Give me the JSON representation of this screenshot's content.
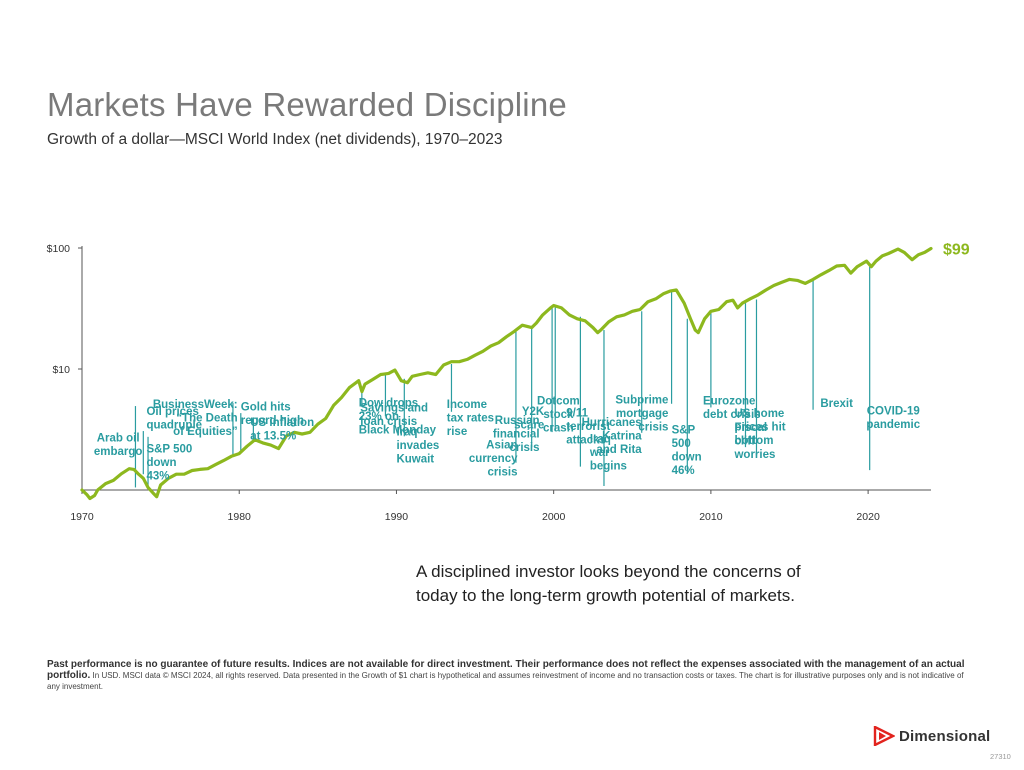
{
  "title": "Markets Have Rewarded Discipline",
  "subtitle": "Growth of a dollar—MSCI World Index (net dividends), 1970–2023",
  "chart_data": {
    "type": "line",
    "yscale": "log",
    "xlim": [
      1970,
      2024
    ],
    "ylim": [
      0.8,
      100
    ],
    "xticks": [
      "1970",
      "1980",
      "1990",
      "2000",
      "2010",
      "2020"
    ],
    "yticks": [
      "$100",
      "$10"
    ],
    "line_color": "#8db81e",
    "end_label": "$99",
    "series": [
      {
        "x": [
          1970.0,
          1970.3,
          1970.5,
          1970.8,
          1971.0,
          1971.5,
          1972.0,
          1972.5,
          1973.0,
          1973.3,
          1973.6,
          1973.9,
          1974.2,
          1974.5,
          1974.75,
          1975.0,
          1975.5,
          1976.0,
          1976.5,
          1977.0,
          1977.5,
          1978.0,
          1978.5,
          1979.0,
          1979.5,
          1980.0,
          1980.5,
          1981.0,
          1981.5,
          1982.0,
          1982.5,
          1983.0,
          1983.5,
          1984.0,
          1984.5,
          1985.0,
          1985.5,
          1986.0,
          1986.5,
          1987.0,
          1987.6,
          1987.8,
          1988.0,
          1988.5,
          1989.0,
          1989.5,
          1989.9,
          1990.3,
          1990.7,
          1991.0,
          1991.5,
          1992.0,
          1992.5,
          1993.0,
          1993.5,
          1994.0,
          1994.5,
          1995.0,
          1995.5,
          1996.0,
          1996.5,
          1997.0,
          1997.5,
          1998.0,
          1998.6,
          1998.9,
          1999.3,
          1999.8,
          2000.0,
          2000.5,
          2001.0,
          2001.5,
          2002.0,
          2002.5,
          2002.8,
          2003.0,
          2003.5,
          2004.0,
          2004.5,
          2005.0,
          2005.5,
          2006.0,
          2006.5,
          2007.0,
          2007.4,
          2007.8,
          2008.3,
          2008.7,
          2009.0,
          2009.2,
          2009.6,
          2010.0,
          2010.5,
          2011.0,
          2011.4,
          2011.7,
          2012.0,
          2012.5,
          2013.0,
          2013.5,
          2014.0,
          2014.5,
          2015.0,
          2015.5,
          2016.0,
          2016.5,
          2017.0,
          2017.5,
          2018.0,
          2018.5,
          2018.9,
          2019.3,
          2019.9,
          2020.2,
          2020.5,
          2020.9,
          2021.3,
          2021.9,
          2022.3,
          2022.8,
          2023.2,
          2023.6,
          2024.0
        ],
        "y": [
          1.0,
          0.92,
          0.85,
          0.9,
          1.0,
          1.13,
          1.2,
          1.36,
          1.5,
          1.48,
          1.35,
          1.25,
          1.05,
          0.95,
          0.88,
          1.1,
          1.25,
          1.35,
          1.35,
          1.45,
          1.48,
          1.5,
          1.62,
          1.75,
          1.9,
          2.0,
          2.3,
          2.6,
          2.45,
          2.35,
          2.2,
          2.8,
          3.0,
          2.9,
          3.0,
          3.5,
          3.9,
          5.0,
          5.8,
          7.0,
          8.0,
          6.5,
          7.5,
          8.2,
          9.0,
          9.2,
          9.8,
          8.0,
          7.7,
          8.7,
          9.0,
          9.3,
          9.0,
          10.8,
          11.5,
          11.5,
          12.0,
          13.0,
          14.0,
          15.5,
          16.5,
          18.5,
          20.5,
          23.0,
          22.0,
          24.0,
          28.0,
          32.0,
          33.5,
          32.0,
          28.0,
          26.0,
          25.0,
          22.0,
          20.0,
          21.0,
          24.5,
          27.0,
          28.0,
          30.0,
          31.0,
          36.0,
          38.0,
          42.0,
          44.0,
          45.0,
          35.0,
          26.0,
          21.0,
          20.0,
          26.0,
          30.0,
          31.0,
          36.0,
          37.0,
          32.0,
          35.0,
          38.0,
          41.0,
          45.0,
          49.0,
          52.0,
          55.0,
          54.0,
          51.0,
          55.0,
          60.0,
          65.0,
          71.0,
          72.0,
          62.0,
          70.0,
          78.0,
          70.0,
          78.0,
          86.0,
          90.0,
          98.0,
          92.0,
          80.0,
          88.0,
          92.0,
          99.0
        ]
      }
    ],
    "annotations": [
      {
        "text": [
          "Arab oil",
          "embargo"
        ],
        "x": 1973.9,
        "line_top": 3.07,
        "line_bottom": 1.35,
        "label_x": 1972.3,
        "label_y": 2.51,
        "align": "middle"
      },
      {
        "text": [
          "Oil prices",
          "quadruple"
        ],
        "x": 1973.4,
        "line_top": 4.94,
        "line_bottom": 1.05,
        "label_x": 1974.1,
        "label_y": 4.18,
        "align": "start"
      },
      {
        "text": [
          "S&P 500",
          "down",
          "43%"
        ],
        "x": 1974.2,
        "line_top": 2.75,
        "line_bottom": 1.05,
        "label_x": 1974.1,
        "label_y": 2.05,
        "align": "start"
      },
      {
        "text": [
          "BusinessWeek:",
          "“The Death",
          "of Equities”"
        ],
        "x": 1979.6,
        "line_top": 5.26,
        "line_bottom": 1.9,
        "label_x": 1979.9,
        "label_y": 4.77,
        "align": "end"
      },
      {
        "text": [
          "Gold hits",
          "record high"
        ],
        "x": 1980.1,
        "line_top": 4.32,
        "line_bottom": 2.1,
        "label_x": 1980.1,
        "label_y": 4.52,
        "align": "start"
      },
      {
        "text": [
          "US inflation",
          "at 13.5%"
        ],
        "x": 1980.9,
        "line_top": 3.98,
        "line_bottom": 2.55,
        "label_x": 1980.7,
        "label_y": 3.38,
        "align": "start"
      },
      {
        "text": [
          "Dow drops",
          "23% on",
          "Black Monday"
        ],
        "x": 1987.8,
        "line_top": 4.95,
        "line_bottom": 6.9,
        "label_x": 1987.6,
        "label_y": 4.9,
        "align": "start"
      },
      {
        "text": [
          "Savings and",
          "loan crisis"
        ],
        "x": 1989.3,
        "line_top": 4.07,
        "line_bottom": 9.0,
        "label_x": 1987.7,
        "label_y": 4.45,
        "align": "start"
      },
      {
        "text": [
          "Iraq",
          "invades",
          "Kuwait"
        ],
        "x": 1990.5,
        "line_top": 2.78,
        "line_bottom": 8.3,
        "label_x": 1990.0,
        "label_y": 2.81,
        "align": "start"
      },
      {
        "text": [
          "Income",
          "tax rates",
          "rise"
        ],
        "x": 1993.5,
        "line_top": 4.43,
        "line_bottom": 11.0,
        "label_x": 1993.2,
        "label_y": 4.76,
        "align": "start"
      },
      {
        "text": [
          "Asian",
          "currency",
          "crisis"
        ],
        "x": 1997.6,
        "line_top": 1.68,
        "line_bottom": 21.5,
        "label_x": 1997.7,
        "label_y": 2.2,
        "align": "end"
      },
      {
        "text": [
          "Russian",
          "financial",
          "crisis"
        ],
        "x": 1998.6,
        "line_top": 2.25,
        "line_bottom": 22.0,
        "label_x": 1999.1,
        "label_y": 3.5,
        "align": "end"
      },
      {
        "text": [
          "Y2K",
          "scare"
        ],
        "x": 1999.9,
        "line_top": 3.01,
        "line_bottom": 32.5,
        "label_x": 1999.4,
        "label_y": 4.17,
        "align": "end"
      },
      {
        "text": [
          "Dotcom",
          "stock",
          "crash"
        ],
        "x": 2000.1,
        "line_top": 3.07,
        "line_bottom": 33.5,
        "label_x": 2000.3,
        "label_y": 5.08,
        "align": "middle"
      },
      {
        "text": [
          "9/11",
          "terrorist",
          "attacks"
        ],
        "x": 2001.7,
        "line_top": 1.56,
        "line_bottom": 27.0,
        "label_x": 2000.8,
        "label_y": 4.05,
        "align": "start"
      },
      {
        "text": [
          "Hurricanes",
          "Katrina",
          "and Rita"
        ],
        "x": 2005.6,
        "line_top": 2.97,
        "line_bottom": 30.0,
        "label_x": 2005.6,
        "label_y": 3.38,
        "align": "end"
      },
      {
        "text": [
          "Iraq",
          "war",
          "begins"
        ],
        "x": 2003.2,
        "line_top": 1.08,
        "line_bottom": 21.0,
        "label_x": 2002.3,
        "label_y": 2.47,
        "align": "start"
      },
      {
        "text": [
          "Subprime",
          "mortgage",
          "crisis"
        ],
        "x": 2007.5,
        "line_top": 5.16,
        "line_bottom": 44.0,
        "label_x": 2007.3,
        "label_y": 5.21,
        "align": "end"
      },
      {
        "text": [
          "S&P",
          "500",
          "down",
          "46%"
        ],
        "x": 2008.5,
        "line_top": 1.37,
        "line_bottom": 26.0,
        "label_x": 2007.5,
        "label_y": 2.93,
        "align": "start"
      },
      {
        "text": [
          "Eurozone",
          "debt crisis"
        ],
        "x": 2010.0,
        "line_top": 4.81,
        "line_bottom": 30.0,
        "label_x": 2009.5,
        "label_y": 5.08,
        "align": "start"
      },
      {
        "text": [
          "US home",
          "prices hit",
          "bottom"
        ],
        "x": 2012.2,
        "line_top": 2.26,
        "line_bottom": 35.0,
        "label_x": 2011.5,
        "label_y": 4.03,
        "align": "start"
      },
      {
        "text": [
          "Fiscal",
          "cliff",
          "worries"
        ],
        "x": 2012.9,
        "line_top": 1.94,
        "line_bottom": 37.5,
        "label_x": 2011.5,
        "label_y": 3.06,
        "align": "start"
      },
      {
        "text": [
          "Brexit"
        ],
        "x": 2016.5,
        "line_top": 4.6,
        "line_bottom": 55.0,
        "label_x": 2018.0,
        "label_y": 4.83,
        "align": "middle"
      },
      {
        "text": [
          "COVID-19",
          "pandemic"
        ],
        "x": 2020.1,
        "line_top": 1.46,
        "line_bottom": 70.0,
        "label_x": 2021.6,
        "label_y": 4.19,
        "align": "middle"
      }
    ]
  },
  "tagline": {
    "line1": "A disciplined investor looks beyond the concerns of",
    "line2": "today to the long-term growth potential of markets."
  },
  "disclaimer": {
    "bold": "Past performance is no guarantee of future results. Indices are not available for direct investment. Their performance does not reflect the expenses associated with the management of an actual portfolio.",
    "text": " In USD. MSCI data © MSCI 2024, all rights reserved. Data presented in the Growth of $1 chart is hypothetical and assumes reinvestment of income and no transaction costs or taxes. The chart is for illustrative purposes only and is not indicative of any investment."
  },
  "logo": {
    "text": "Dimensional",
    "icon": "dimensional-logo-icon",
    "color": "#e2241e"
  },
  "code": "27310"
}
